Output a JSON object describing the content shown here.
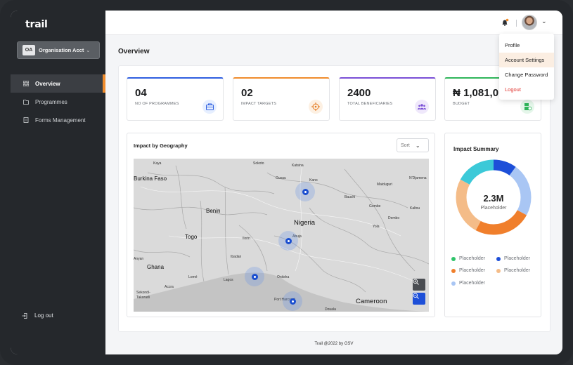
{
  "app": {
    "logo": "trail"
  },
  "sidebar": {
    "org_badge": "OA",
    "org_name": "Organisation Acct",
    "items": [
      {
        "label": "Overview",
        "icon": "grid-icon",
        "active": true
      },
      {
        "label": "Programmes",
        "icon": "folder-icon",
        "active": false
      },
      {
        "label": "Forms Management",
        "icon": "form-icon",
        "active": false
      }
    ],
    "logout_label": "Log out"
  },
  "header": {
    "notification_icon": "bell-icon",
    "avatar": "user-avatar"
  },
  "dropdown": {
    "items": [
      "Profile",
      "Account Settings",
      "Change Password",
      "Logout"
    ]
  },
  "page": {
    "title": "Overview"
  },
  "cards": [
    {
      "value": "04",
      "label": "NO OF PROGRAMMES",
      "accent": "#2f5fe0",
      "icon": "briefcase-icon",
      "icon_bg": "#e6efff",
      "icon_color": "#2f5fe0"
    },
    {
      "value": "02",
      "label": "IMPACT TARGETS",
      "accent": "#f08c2c",
      "icon": "target-icon",
      "icon_bg": "#fdf0e2",
      "icon_color": "#e47a20"
    },
    {
      "value": "2400",
      "label": "TOTAL BENEFICIARIES",
      "accent": "#7a4fd6",
      "icon": "people-icon",
      "icon_bg": "#efe8fb",
      "icon_color": "#7a4fd6"
    },
    {
      "value": "₦ 1,081,0",
      "label": "BUDGET",
      "accent": "#2fb55a",
      "icon": "money-icon",
      "icon_bg": "#e5f6ea",
      "icon_color": "#2fb55a"
    }
  ],
  "geography": {
    "title": "Impact by Geography",
    "sort_label": "Sort",
    "places": [
      "Kaya",
      "Burkina Faso",
      "Sokoto",
      "Katsina",
      "Gusau",
      "Kano",
      "Maiduguri",
      "N'Djamena",
      "Benin",
      "Nigeria",
      "Bauchi",
      "Gombe",
      "Kaltou",
      "Dembo",
      "Yola",
      "Togo",
      "Ilorin",
      "Abuja",
      "Anyan",
      "Ghana",
      "Ibadan",
      "Lomé",
      "Lagos",
      "Onitsha",
      "Accra",
      "Sekondi-Takoradi",
      "Port Harcourt",
      "Douala",
      "Cameroon"
    ]
  },
  "impact_summary": {
    "title": "Impact Summary",
    "total": "2.3M",
    "total_label": "Placeholder",
    "legend": [
      {
        "label": "Placeholder",
        "color": "#2fc46a"
      },
      {
        "label": "Placeholder",
        "color": "#1d4fd8"
      },
      {
        "label": "Placeholder",
        "color": "#f07f2c"
      },
      {
        "label": "Placeholder",
        "color": "#f4bc88"
      },
      {
        "label": "Placeholder",
        "color": "#a9c6f4"
      }
    ]
  },
  "footer": {
    "text": "Trail @2022 by GSV"
  }
}
